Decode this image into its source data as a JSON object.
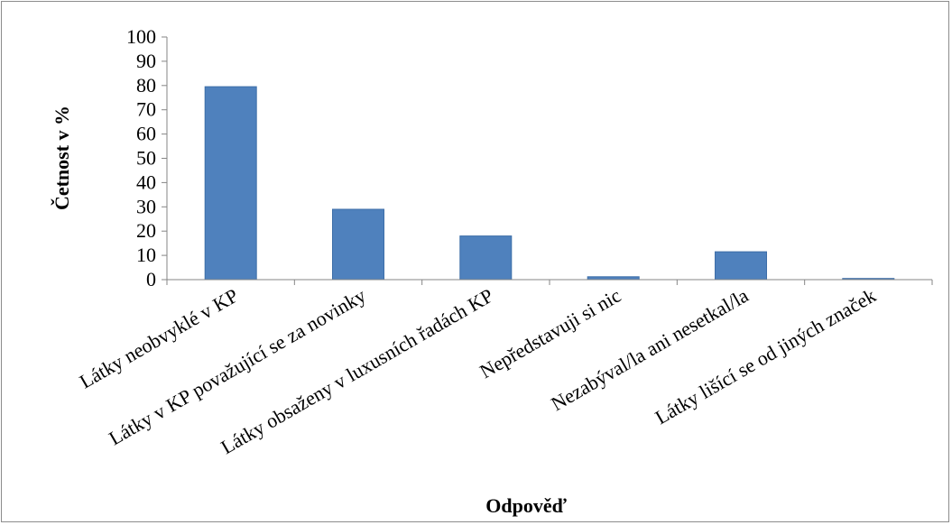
{
  "chart_data": {
    "type": "bar",
    "title": "",
    "xlabel": "Odpověď",
    "ylabel": "Četnost v %",
    "categories": [
      "Látky neobvyklé v KP",
      "Látky v KP považující se za novinky",
      "Látky obsaženy v luxusních řadách KP",
      "Nepředstavuji si nic",
      "Nezabýval/la ani nesetkal/la",
      "Látky lišící se od jiných značek"
    ],
    "values": [
      79.5,
      29,
      18,
      1.2,
      11.5,
      0.5
    ],
    "ylim": [
      0,
      100
    ],
    "yticks": [
      "0",
      "10",
      "20",
      "30",
      "40",
      "50",
      "60",
      "70",
      "80",
      "90",
      "100"
    ],
    "grid": false,
    "legend": "none",
    "bar_color": "#4F81BD",
    "bar_edge_color": "#3D6EA8"
  }
}
